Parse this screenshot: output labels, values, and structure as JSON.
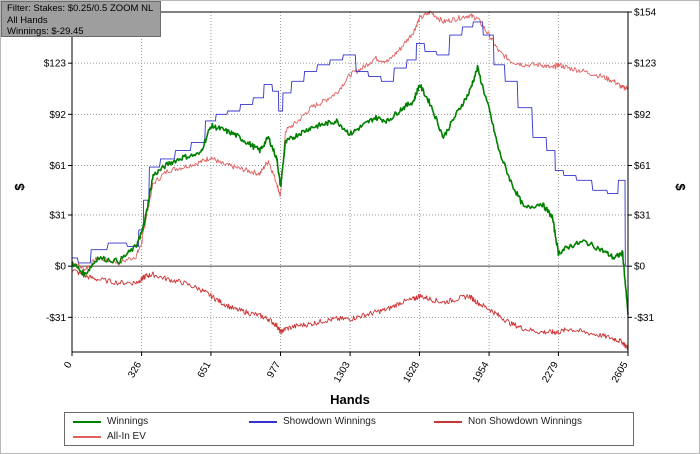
{
  "filter_box": {
    "line1": "Filter: Stakes: $0.25/0.5 ZOOM NL",
    "line2": "All Hands",
    "line3": "Winnings: $-29.45"
  },
  "chart_data": {
    "type": "line",
    "xlabel": "Hands",
    "ylabel": "$",
    "ylabel_right": "$",
    "xlim": [
      0,
      2605
    ],
    "ylim": [
      -52,
      154
    ],
    "x_ticks": [
      0,
      326,
      651,
      977,
      1303,
      1628,
      1954,
      2279,
      2605
    ],
    "x_tick_labels": [
      "0",
      "326",
      "651",
      "977",
      "1303",
      "1628",
      "1954",
      "2279",
      "2605"
    ],
    "y_ticks": [
      -31,
      0,
      31,
      61,
      92,
      123,
      154
    ],
    "y_tick_labels": [
      "-$31",
      "$0",
      "$31",
      "$61",
      "$92",
      "$123",
      "$154"
    ],
    "grid": true,
    "legend_position": "bottom",
    "series": [
      {
        "name": "Winnings",
        "color": "#008000",
        "x": [
          0,
          60,
          120,
          220,
          300,
          326,
          345,
          380,
          450,
          520,
          600,
          651,
          700,
          760,
          820,
          880,
          920,
          960,
          977,
          1000,
          1060,
          1120,
          1180,
          1240,
          1303,
          1360,
          1420,
          1480,
          1540,
          1600,
          1628,
          1680,
          1740,
          1800,
          1860,
          1900,
          1954,
          2000,
          2060,
          2120,
          2200,
          2250,
          2279,
          2330,
          2400,
          2480,
          2540,
          2580,
          2605
        ],
        "y": [
          2,
          -5,
          5,
          3,
          12,
          20,
          30,
          55,
          62,
          66,
          68,
          85,
          83,
          80,
          75,
          70,
          78,
          65,
          48,
          75,
          80,
          84,
          86,
          88,
          80,
          85,
          90,
          88,
          95,
          100,
          110,
          98,
          78,
          92,
          105,
          120,
          95,
          70,
          50,
          35,
          38,
          30,
          8,
          12,
          15,
          10,
          5,
          8,
          -29.45
        ]
      },
      {
        "name": "Showdown Winnings",
        "color": "#3333cc",
        "x": [
          0,
          60,
          120,
          220,
          300,
          326,
          345,
          380,
          450,
          520,
          600,
          651,
          700,
          760,
          820,
          880,
          920,
          960,
          977,
          1000,
          1060,
          1120,
          1180,
          1240,
          1303,
          1360,
          1420,
          1480,
          1540,
          1600,
          1628,
          1680,
          1740,
          1800,
          1860,
          1900,
          1954,
          2000,
          2060,
          2120,
          2200,
          2250,
          2279,
          2330,
          2400,
          2480,
          2540,
          2580,
          2605
        ],
        "y": [
          5,
          2,
          10,
          14,
          12,
          22,
          40,
          60,
          65,
          70,
          75,
          88,
          92,
          94,
          98,
          102,
          110,
          106,
          94,
          105,
          112,
          118,
          122,
          125,
          128,
          118,
          115,
          112,
          120,
          125,
          135,
          130,
          128,
          140,
          145,
          148,
          140,
          122,
          112,
          96,
          78,
          70,
          58,
          55,
          52,
          46,
          44,
          52,
          0
        ]
      },
      {
        "name": "Non Showdown Winnings",
        "color": "#cc3333",
        "x": [
          0,
          60,
          120,
          220,
          300,
          326,
          345,
          380,
          450,
          520,
          600,
          651,
          700,
          760,
          820,
          880,
          920,
          960,
          977,
          1000,
          1060,
          1120,
          1180,
          1240,
          1303,
          1360,
          1420,
          1480,
          1540,
          1600,
          1628,
          1680,
          1740,
          1800,
          1860,
          1900,
          1954,
          2000,
          2060,
          2120,
          2200,
          2250,
          2279,
          2330,
          2400,
          2480,
          2540,
          2580,
          2605
        ],
        "y": [
          -2,
          -6,
          -8,
          -10,
          -10,
          -8,
          -6,
          -5,
          -8,
          -10,
          -14,
          -18,
          -22,
          -26,
          -28,
          -30,
          -32,
          -36,
          -40,
          -38,
          -36,
          -35,
          -33,
          -32,
          -32,
          -30,
          -28,
          -26,
          -22,
          -20,
          -18,
          -20,
          -22,
          -20,
          -18,
          -22,
          -26,
          -30,
          -35,
          -38,
          -40,
          -40,
          -40,
          -38,
          -40,
          -42,
          -44,
          -46,
          -50
        ]
      },
      {
        "name": "All-In EV",
        "color": "#e06060",
        "x": [
          0,
          60,
          120,
          220,
          300,
          326,
          345,
          380,
          450,
          520,
          600,
          651,
          700,
          760,
          820,
          880,
          920,
          960,
          977,
          1000,
          1060,
          1120,
          1180,
          1240,
          1303,
          1360,
          1420,
          1480,
          1540,
          1600,
          1628,
          1680,
          1740,
          1800,
          1860,
          1900,
          1954,
          2000,
          2060,
          2120,
          2200,
          2250,
          2279,
          2330,
          2400,
          2480,
          2540,
          2580,
          2605
        ],
        "y": [
          3,
          -2,
          5,
          2,
          6,
          14,
          28,
          50,
          58,
          60,
          63,
          66,
          62,
          60,
          58,
          56,
          64,
          50,
          42,
          82,
          88,
          96,
          100,
          105,
          116,
          120,
          126,
          124,
          132,
          142,
          150,
          154,
          148,
          150,
          152,
          150,
          140,
          130,
          124,
          122,
          122,
          120,
          122,
          120,
          118,
          115,
          112,
          108,
          108
        ]
      }
    ]
  },
  "legend": {
    "winnings": "Winnings",
    "showdown": "Showdown Winnings",
    "nonshowdown": "Non Showdown Winnings",
    "allin": "All-In EV"
  }
}
